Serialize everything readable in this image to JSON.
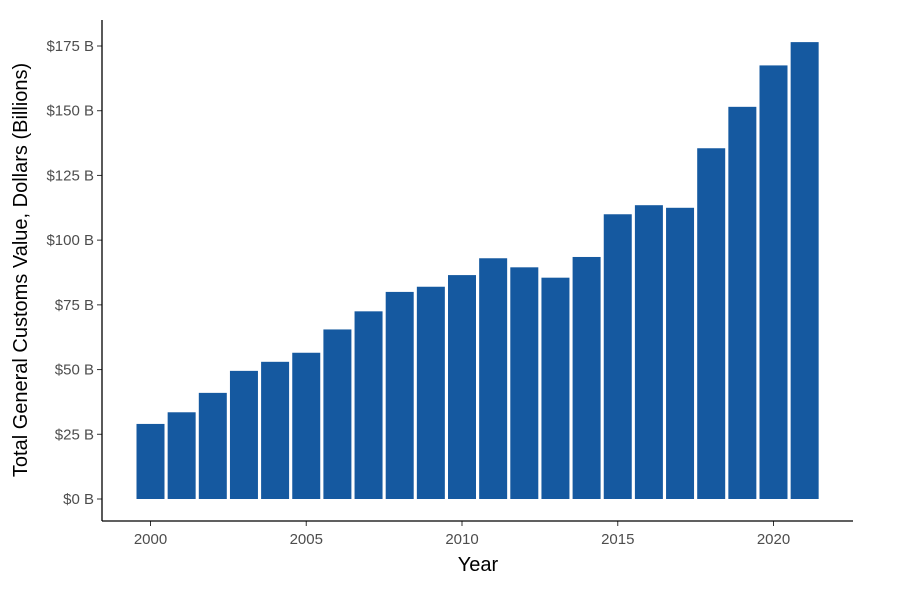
{
  "chart_data": {
    "type": "bar",
    "title": "",
    "xlabel": "Year",
    "ylabel": "Total General Customs Value, Dollars (Billions)",
    "categories": [
      2000,
      2001,
      2002,
      2003,
      2004,
      2005,
      2006,
      2007,
      2008,
      2009,
      2010,
      2011,
      2012,
      2013,
      2014,
      2015,
      2016,
      2017,
      2018,
      2019,
      2020,
      2021
    ],
    "values": [
      29,
      33.5,
      41,
      49.5,
      53,
      56.5,
      65.5,
      72.5,
      80,
      82,
      86.5,
      93,
      89.5,
      85.5,
      93.5,
      110,
      113.5,
      112.5,
      135.5,
      151.5,
      167.5,
      176.5
    ],
    "ylim": [
      0,
      176.5
    ],
    "yticks": [
      0,
      25,
      50,
      75,
      100,
      125,
      150,
      175
    ],
    "ytick_labels": [
      "$0 B",
      "$25 B",
      "$50 B",
      "$75 B",
      "$100 B",
      "$125 B",
      "$150 B",
      "$175 B"
    ],
    "xticks": [
      2000,
      2005,
      2010,
      2015,
      2020
    ],
    "xtick_labels": [
      "2000",
      "2005",
      "2010",
      "2015",
      "2020"
    ],
    "bar_color": "#1559a0",
    "grid": false,
    "legend": "none"
  }
}
